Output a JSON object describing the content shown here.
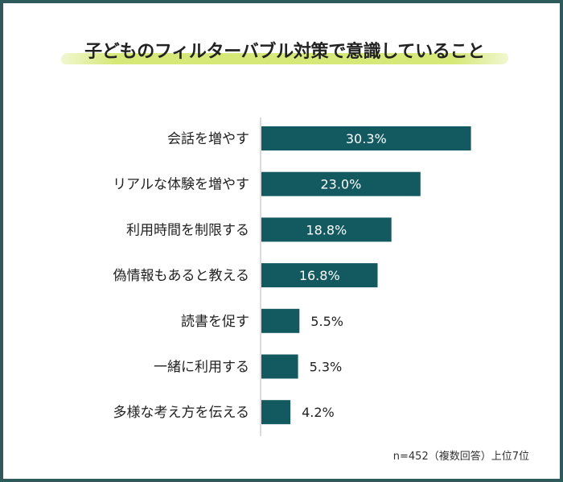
{
  "title": "子どものフィルターバブル対策で意識していること",
  "note": "n=452（複数回答）上位7位",
  "colors": {
    "bar": "#135a60",
    "frame": "#2f5a5c",
    "highlight": "#d6e878",
    "label": "#222222"
  },
  "chart_data": {
    "type": "bar",
    "orientation": "horizontal",
    "categories": [
      "会話を増やす",
      "リアルな体験を増やす",
      "利用時間を制限する",
      "偽情報もあると教える",
      "読書を促す",
      "一緒に利用する",
      "多様な考え方を伝える"
    ],
    "values": [
      30.3,
      23.0,
      18.8,
      16.8,
      5.5,
      5.3,
      4.2
    ],
    "value_labels": [
      "30.3%",
      "23.0%",
      "18.8%",
      "16.8%",
      "5.5%",
      "5.3%",
      "4.2%"
    ],
    "unit": "%"
  }
}
